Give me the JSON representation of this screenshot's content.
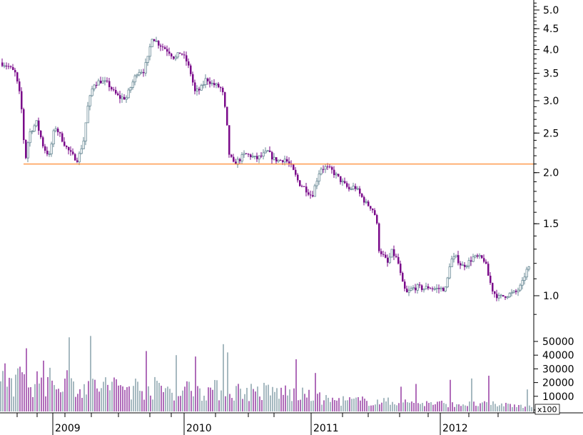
{
  "chart_data": {
    "type": "candlestick",
    "title": "",
    "xlabel": "",
    "ylabel": "",
    "x_labels": [
      "2009",
      "2010",
      "2011",
      "2012"
    ],
    "price_axis": {
      "scale": "log",
      "ticks": [
        1.0,
        1.5,
        2.0,
        2.5,
        3.0,
        3.5,
        4.0,
        4.5,
        5.0
      ],
      "tick_labels": [
        "1.0",
        "1.5",
        "2.0",
        "2.5",
        "3.0",
        "3.5",
        "4.0",
        "4.5",
        "5.0"
      ],
      "ylim": [
        0.85,
        5.4
      ]
    },
    "volume_axis": {
      "ticks": [
        0,
        10000,
        20000,
        30000,
        40000,
        50000
      ],
      "tick_labels": [
        "0",
        "10000",
        "20000",
        "30000",
        "40000",
        "50000"
      ],
      "unit_label": "x100",
      "ylim": [
        0,
        56000
      ]
    },
    "reference_line": {
      "value": 2.1,
      "color": "#ff8c33"
    },
    "colors": {
      "up": "#6a8a96",
      "down": "#7a0a8a",
      "axis": "#000000",
      "grid": "#c8c8c8"
    },
    "price_path": [
      [
        0,
        3.72
      ],
      [
        10,
        3.65
      ],
      [
        20,
        3.5
      ],
      [
        28,
        3.0
      ],
      [
        34,
        2.12
      ],
      [
        40,
        2.5
      ],
      [
        50,
        2.65
      ],
      [
        60,
        2.3
      ],
      [
        68,
        2.2
      ],
      [
        76,
        2.6
      ],
      [
        84,
        2.45
      ],
      [
        92,
        2.3
      ],
      [
        100,
        2.2
      ],
      [
        108,
        2.15
      ],
      [
        116,
        2.4
      ],
      [
        122,
        2.9
      ],
      [
        130,
        3.3
      ],
      [
        140,
        3.35
      ],
      [
        150,
        3.3
      ],
      [
        158,
        3.15
      ],
      [
        166,
        3.05
      ],
      [
        176,
        3.05
      ],
      [
        184,
        3.3
      ],
      [
        192,
        3.55
      ],
      [
        200,
        3.55
      ],
      [
        206,
        3.8
      ],
      [
        212,
        4.3
      ],
      [
        220,
        4.15
      ],
      [
        228,
        4.05
      ],
      [
        236,
        3.95
      ],
      [
        244,
        3.8
      ],
      [
        252,
        3.95
      ],
      [
        260,
        3.75
      ],
      [
        266,
        3.5
      ],
      [
        272,
        3.15
      ],
      [
        280,
        3.2
      ],
      [
        288,
        3.4
      ],
      [
        296,
        3.3
      ],
      [
        304,
        3.25
      ],
      [
        310,
        3.2
      ],
      [
        316,
        2.7
      ],
      [
        320,
        2.22
      ],
      [
        326,
        2.1
      ],
      [
        334,
        2.15
      ],
      [
        342,
        2.22
      ],
      [
        350,
        2.2
      ],
      [
        358,
        2.16
      ],
      [
        366,
        2.2
      ],
      [
        374,
        2.25
      ],
      [
        382,
        2.16
      ],
      [
        390,
        2.14
      ],
      [
        398,
        2.16
      ],
      [
        406,
        2.08
      ],
      [
        412,
        1.98
      ],
      [
        418,
        1.88
      ],
      [
        424,
        1.85
      ],
      [
        430,
        1.8
      ],
      [
        436,
        1.75
      ],
      [
        442,
        1.9
      ],
      [
        448,
        2.05
      ],
      [
        456,
        2.06
      ],
      [
        464,
        2.02
      ],
      [
        472,
        1.95
      ],
      [
        480,
        1.88
      ],
      [
        488,
        1.82
      ],
      [
        496,
        1.85
      ],
      [
        504,
        1.76
      ],
      [
        512,
        1.68
      ],
      [
        520,
        1.64
      ],
      [
        526,
        1.55
      ],
      [
        530,
        1.3
      ],
      [
        536,
        1.25
      ],
      [
        542,
        1.2
      ],
      [
        548,
        1.28
      ],
      [
        556,
        1.22
      ],
      [
        562,
        1.08
      ],
      [
        568,
        1.01
      ],
      [
        576,
        1.04
      ],
      [
        584,
        1.05
      ],
      [
        592,
        1.04
      ],
      [
        600,
        1.05
      ],
      [
        608,
        1.04
      ],
      [
        616,
        1.04
      ],
      [
        624,
        1.04
      ],
      [
        630,
        1.22
      ],
      [
        638,
        1.24
      ],
      [
        646,
        1.18
      ],
      [
        654,
        1.2
      ],
      [
        662,
        1.24
      ],
      [
        670,
        1.24
      ],
      [
        678,
        1.22
      ],
      [
        684,
        1.1
      ],
      [
        690,
        1.02
      ],
      [
        698,
        0.99
      ],
      [
        706,
        1.0
      ],
      [
        714,
        1.01
      ],
      [
        722,
        1.02
      ],
      [
        730,
        1.06
      ],
      [
        736,
        1.15
      ],
      [
        742,
        1.17
      ]
    ],
    "volume_profile": [
      [
        0,
        28000
      ],
      [
        100,
        24000
      ],
      [
        200,
        20000
      ],
      [
        300,
        18000
      ],
      [
        400,
        16000
      ],
      [
        460,
        9000
      ],
      [
        520,
        8000
      ],
      [
        600,
        6000
      ],
      [
        700,
        5000
      ],
      [
        745,
        4000
      ]
    ],
    "volume_spikes": [
      [
        8,
        34000
      ],
      [
        36,
        45000
      ],
      [
        62,
        36000
      ],
      [
        98,
        53000
      ],
      [
        128,
        54000
      ],
      [
        206,
        43000
      ],
      [
        246,
        40000
      ],
      [
        274,
        39000
      ],
      [
        312,
        48000
      ],
      [
        320,
        42000
      ],
      [
        416,
        37000
      ],
      [
        442,
        27000
      ],
      [
        562,
        17000
      ],
      [
        582,
        19000
      ],
      [
        632,
        22000
      ],
      [
        662,
        23000
      ],
      [
        686,
        25000
      ],
      [
        738,
        15000
      ]
    ]
  }
}
